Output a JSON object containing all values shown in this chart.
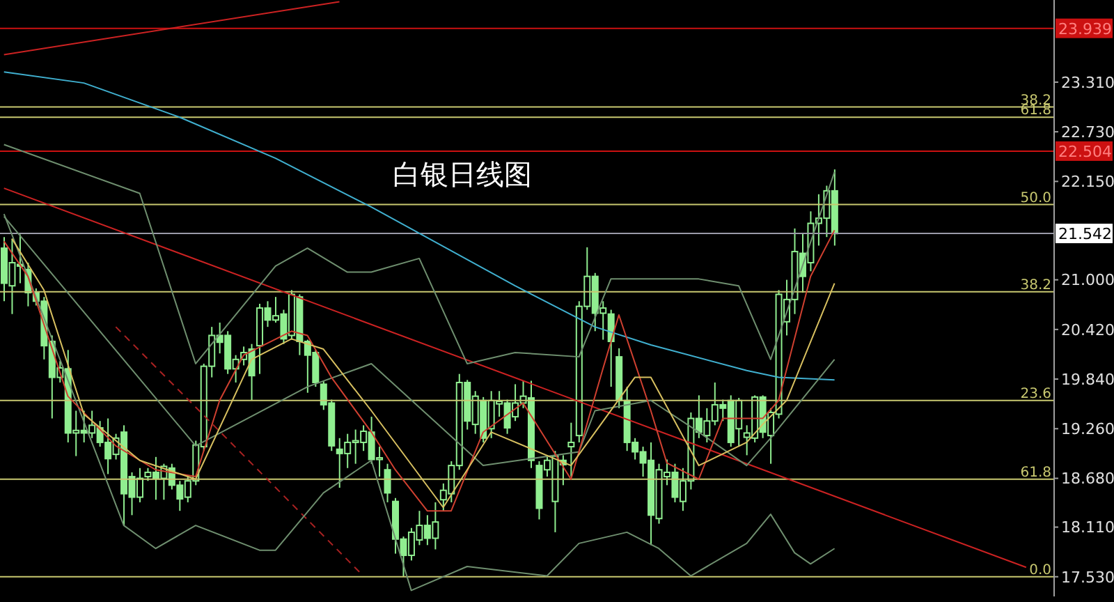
{
  "chart_data": {
    "type": "candlestick",
    "title": "白银日线图",
    "color": "#90ee90",
    "categories": [
      null,
      null,
      null,
      null,
      null,
      null,
      null,
      null,
      null,
      null,
      null,
      null,
      null,
      null,
      null,
      null,
      null,
      null,
      null,
      null,
      null,
      null,
      null,
      null,
      null,
      null,
      null,
      null,
      null,
      null,
      null,
      null,
      null,
      null,
      null,
      null,
      null,
      null,
      null,
      null,
      null,
      null,
      null,
      null,
      null,
      null,
      null,
      null,
      null,
      null,
      null,
      null,
      null,
      null,
      null,
      null,
      null,
      null,
      null,
      null,
      null,
      null,
      null,
      null,
      null,
      null,
      null,
      null,
      null,
      null,
      null,
      null,
      null,
      null,
      null,
      null,
      null,
      null,
      null,
      null,
      null,
      null,
      null,
      null,
      null,
      null,
      null,
      null,
      null,
      null,
      null,
      null,
      null,
      null,
      null,
      null,
      null,
      null,
      null,
      null,
      null,
      null,
      null,
      null,
      null,
      null,
      null,
      null,
      null,
      null,
      null,
      null,
      null,
      null,
      null,
      null,
      null,
      null,
      null,
      null,
      null,
      null,
      null,
      null,
      null,
      null,
      null,
      null,
      null,
      null,
      null,
      null
    ],
    "ohlc": [
      [
        21.37,
        21.5,
        20.75,
        20.96
      ],
      [
        20.93,
        21.48,
        20.6,
        21.2
      ],
      [
        21.18,
        21.53,
        20.96,
        21.16
      ],
      [
        21.12,
        21.2,
        20.69,
        20.85
      ],
      [
        20.85,
        20.9,
        20.7,
        20.75
      ],
      [
        20.75,
        20.8,
        20.07,
        20.23
      ],
      [
        20.28,
        20.35,
        19.38,
        19.86
      ],
      [
        19.86,
        20.05,
        19.8,
        19.97
      ],
      [
        19.96,
        20.18,
        19.1,
        19.21
      ],
      [
        19.21,
        19.47,
        18.94,
        19.24
      ],
      [
        19.24,
        19.47,
        19.1,
        19.21
      ],
      [
        19.21,
        19.47,
        19.15,
        19.3
      ],
      [
        19.27,
        19.35,
        19.05,
        19.1
      ],
      [
        19.1,
        19.38,
        18.73,
        18.91
      ],
      [
        18.96,
        19.2,
        18.9,
        19.15
      ],
      [
        19.22,
        19.3,
        18.13,
        18.5
      ],
      [
        18.7,
        18.75,
        18.25,
        18.46
      ],
      [
        18.46,
        18.8,
        18.4,
        18.68
      ],
      [
        18.7,
        18.8,
        18.65,
        18.75
      ],
      [
        18.75,
        18.93,
        18.43,
        18.68
      ],
      [
        18.68,
        18.85,
        18.43,
        18.82
      ],
      [
        18.8,
        18.85,
        18.55,
        18.6
      ],
      [
        18.6,
        18.65,
        18.3,
        18.44
      ],
      [
        18.46,
        18.7,
        18.4,
        18.65
      ],
      [
        18.65,
        19.12,
        18.6,
        19.07
      ],
      [
        19.05,
        20.02,
        19.0,
        19.99
      ],
      [
        19.99,
        20.45,
        19.86,
        20.35
      ],
      [
        20.35,
        20.5,
        20.14,
        20.27
      ],
      [
        20.35,
        20.4,
        19.9,
        19.96
      ],
      [
        19.96,
        20.12,
        19.8,
        20.07
      ],
      [
        20.07,
        20.22,
        20.0,
        20.15
      ],
      [
        20.19,
        20.25,
        19.59,
        19.88
      ],
      [
        20.23,
        20.72,
        19.9,
        20.67
      ],
      [
        20.67,
        20.75,
        20.45,
        20.53
      ],
      [
        20.53,
        20.8,
        20.5,
        20.58
      ],
      [
        20.6,
        20.65,
        20.25,
        20.31
      ],
      [
        20.35,
        20.88,
        20.3,
        20.83
      ],
      [
        20.8,
        20.83,
        20.12,
        20.28
      ],
      [
        20.28,
        20.3,
        19.68,
        20.12
      ],
      [
        20.15,
        20.18,
        19.75,
        19.8
      ],
      [
        19.78,
        19.82,
        19.48,
        19.54
      ],
      [
        19.56,
        19.6,
        19.0,
        19.06
      ],
      [
        19.02,
        19.15,
        18.57,
        18.97
      ],
      [
        18.97,
        19.2,
        18.8,
        19.1
      ],
      [
        19.1,
        19.25,
        18.85,
        19.12
      ],
      [
        19.1,
        19.3,
        19.0,
        19.23
      ],
      [
        19.22,
        19.4,
        18.85,
        18.9
      ],
      [
        18.9,
        19.05,
        18.7,
        18.92
      ],
      [
        18.78,
        18.85,
        18.4,
        18.51
      ],
      [
        18.41,
        18.45,
        17.8,
        17.97
      ],
      [
        17.97,
        18.0,
        17.53,
        17.78
      ],
      [
        17.78,
        18.1,
        17.72,
        18.05
      ],
      [
        17.96,
        18.3,
        17.9,
        18.13
      ],
      [
        18.13,
        18.25,
        17.9,
        17.98
      ],
      [
        17.98,
        18.4,
        17.85,
        18.17
      ],
      [
        18.43,
        18.62,
        18.3,
        18.54
      ],
      [
        18.5,
        18.88,
        18.4,
        18.83
      ],
      [
        18.83,
        19.9,
        18.78,
        19.8
      ],
      [
        19.8,
        19.83,
        19.25,
        19.35
      ],
      [
        19.31,
        19.7,
        19.2,
        19.64
      ],
      [
        19.59,
        19.63,
        19.1,
        19.15
      ],
      [
        19.26,
        19.7,
        19.15,
        19.59
      ],
      [
        19.55,
        19.7,
        19.4,
        19.58
      ],
      [
        19.56,
        19.6,
        19.2,
        19.27
      ],
      [
        19.4,
        19.78,
        19.35,
        19.56
      ],
      [
        19.56,
        19.82,
        19.5,
        19.64
      ],
      [
        19.62,
        19.82,
        18.8,
        18.89
      ],
      [
        18.83,
        18.88,
        18.2,
        18.33
      ],
      [
        18.78,
        18.95,
        18.7,
        18.89
      ],
      [
        18.41,
        19.0,
        18.05,
        18.94
      ],
      [
        18.89,
        18.95,
        18.6,
        18.84
      ],
      [
        19.05,
        19.33,
        18.7,
        19.1
      ],
      [
        19.18,
        20.75,
        19.1,
        20.69
      ],
      [
        20.69,
        21.38,
        20.65,
        21.04
      ],
      [
        21.04,
        21.08,
        20.4,
        20.61
      ],
      [
        20.61,
        20.75,
        20.3,
        20.67
      ],
      [
        20.6,
        20.65,
        19.75,
        20.28
      ],
      [
        20.1,
        20.2,
        19.5,
        19.59
      ],
      [
        19.59,
        19.75,
        19.0,
        19.1
      ],
      [
        19.1,
        19.15,
        18.9,
        18.99
      ],
      [
        18.99,
        19.05,
        18.7,
        18.86
      ],
      [
        18.89,
        19.1,
        17.9,
        18.25
      ],
      [
        18.21,
        18.85,
        18.15,
        18.78
      ],
      [
        18.7,
        18.9,
        18.6,
        18.75
      ],
      [
        18.75,
        18.85,
        18.4,
        18.46
      ],
      [
        18.41,
        18.8,
        18.3,
        18.65
      ],
      [
        18.65,
        19.45,
        18.55,
        19.38
      ],
      [
        19.38,
        19.65,
        19.15,
        19.22
      ],
      [
        19.18,
        19.5,
        19.1,
        19.35
      ],
      [
        19.35,
        19.8,
        19.3,
        19.54
      ],
      [
        19.54,
        19.6,
        19.35,
        19.5
      ],
      [
        19.59,
        19.65,
        19.05,
        19.1
      ],
      [
        19.26,
        19.62,
        19.05,
        19.59
      ],
      [
        19.16,
        19.3,
        18.95,
        19.21
      ],
      [
        19.15,
        19.65,
        19.1,
        19.63
      ],
      [
        19.63,
        19.65,
        19.15,
        19.22
      ],
      [
        19.18,
        19.5,
        18.85,
        19.45
      ],
      [
        19.43,
        20.88,
        19.38,
        20.83
      ],
      [
        20.51,
        21.0,
        20.35,
        20.77
      ],
      [
        20.77,
        21.6,
        20.6,
        21.33
      ],
      [
        21.31,
        21.55,
        20.85,
        21.04
      ],
      [
        21.2,
        21.8,
        21.1,
        21.66
      ],
      [
        21.66,
        22.0,
        21.4,
        21.72
      ],
      [
        21.72,
        22.1,
        21.5,
        22.04
      ],
      [
        22.04,
        22.29,
        21.4,
        21.54
      ],
      null,
      null,
      null,
      null,
      null,
      null,
      null,
      null,
      null,
      null,
      null,
      null,
      null,
      null,
      null,
      null,
      null,
      null,
      null,
      null,
      null,
      null,
      null,
      null,
      null,
      null,
      null
    ],
    "series": [
      {
        "type": "line",
        "color": "#40b0d0",
        "values": [
          23.43,
          null,
          null,
          null,
          null,
          null,
          null,
          null,
          null,
          null,
          23.3,
          null,
          null,
          null,
          null,
          null,
          null,
          null,
          null,
          null,
          null,
          null,
          22.9,
          null,
          null,
          null,
          null,
          null,
          null,
          null,
          null,
          null,
          null,
          null,
          22.42,
          null,
          null,
          null,
          null,
          null,
          null,
          null,
          null,
          null,
          null,
          null,
          21.85,
          null,
          null,
          null,
          null,
          null,
          null,
          null,
          null,
          null,
          null,
          null,
          null,
          null,
          null,
          null,
          null,
          null,
          20.93,
          null,
          null,
          null,
          null,
          null,
          null,
          null,
          null,
          null,
          20.45,
          null,
          null,
          null,
          null,
          null,
          null,
          20.24,
          null,
          null,
          null,
          null,
          null,
          null,
          null,
          null,
          null,
          null,
          null,
          19.94,
          null,
          null,
          null,
          19.86,
          null,
          null,
          null,
          null,
          null,
          null,
          19.83,
          null,
          null,
          null,
          null,
          null,
          null,
          null,
          null,
          null,
          null,
          null,
          null,
          null,
          null,
          null,
          null,
          null,
          null,
          null,
          null,
          null,
          null,
          null,
          null,
          null,
          null,
          null
        ]
      },
      {
        "type": "line",
        "color": "#cc2222",
        "values": [
          22.07,
          null,
          null,
          null,
          null,
          null,
          null,
          null,
          null,
          null,
          null,
          null,
          null,
          null,
          null,
          null,
          null,
          null,
          null,
          null,
          null,
          null,
          null,
          null,
          null,
          null,
          null,
          null,
          null,
          null,
          null,
          null,
          null,
          null,
          null,
          null,
          null,
          null,
          null,
          null,
          null,
          null,
          null,
          null,
          null,
          null,
          null,
          null,
          null,
          null,
          null,
          null,
          null,
          null,
          null,
          null,
          null,
          null,
          null,
          null,
          null,
          null,
          null,
          null,
          null,
          null,
          null,
          null,
          null,
          null,
          null,
          null,
          null,
          null,
          null,
          null,
          null,
          null,
          null,
          null,
          null,
          null,
          null,
          null,
          null,
          null,
          null,
          null,
          null,
          null,
          null,
          null,
          null,
          null,
          null,
          null,
          null,
          null,
          null,
          null,
          null,
          null,
          null,
          null,
          null,
          null,
          null,
          null,
          null,
          null,
          null,
          null,
          null,
          null,
          null,
          null,
          null,
          null,
          null,
          null,
          null,
          null,
          null,
          null,
          null,
          null,
          null,
          null,
          17.64,
          null,
          null,
          null
        ]
      },
      {
        "type": "line",
        "color": "#cc2222",
        "values": [
          23.63,
          null,
          null,
          null,
          null,
          null,
          null,
          null,
          null,
          null,
          null,
          null,
          null,
          null,
          null,
          null,
          null,
          null,
          null,
          null,
          null,
          null,
          null,
          null,
          null,
          null,
          null,
          null,
          null,
          null,
          null,
          null,
          null,
          null,
          null,
          null,
          null,
          null,
          null,
          null,
          null,
          null,
          24.25,
          null,
          null,
          null,
          null,
          null,
          null,
          null,
          null,
          null,
          null,
          null,
          null,
          null,
          null,
          null,
          null,
          null,
          null,
          null,
          null,
          null,
          null,
          null,
          null,
          null,
          null,
          null,
          null,
          null,
          null,
          null,
          null,
          null,
          null,
          null,
          null,
          null,
          null,
          null,
          null,
          null,
          null,
          null,
          null,
          null,
          null,
          null,
          null,
          null,
          null,
          null,
          null,
          null,
          null,
          null,
          null,
          null,
          null,
          null,
          null,
          null,
          null,
          null,
          null,
          null,
          null,
          null,
          null,
          null,
          null,
          null,
          null,
          null,
          null,
          null,
          null,
          null,
          null,
          null,
          null,
          null,
          null,
          null,
          null,
          null,
          null,
          null,
          null,
          null
        ]
      },
      {
        "type": "line",
        "color": "#aa2222",
        "line_style": "dashed",
        "values": [
          null,
          null,
          null,
          null,
          null,
          null,
          null,
          null,
          null,
          null,
          null,
          null,
          null,
          null,
          20.45,
          null,
          null,
          null,
          null,
          null,
          null,
          null,
          null,
          null,
          null,
          null,
          null,
          null,
          null,
          null,
          null,
          null,
          null,
          null,
          null,
          null,
          null,
          null,
          null,
          null,
          null,
          null,
          null,
          null,
          null,
          17.54,
          null,
          null,
          null,
          null,
          null,
          null,
          null,
          null,
          null,
          null,
          null,
          null,
          null,
          null,
          null,
          null,
          null,
          null,
          null,
          null,
          null,
          null,
          null,
          null,
          null,
          null,
          null,
          null,
          null,
          null,
          null,
          null,
          null,
          null,
          null,
          null,
          null,
          null,
          null,
          null,
          null,
          null,
          null,
          null,
          null,
          null,
          null,
          null,
          null,
          null,
          null,
          null,
          null,
          null,
          null,
          null,
          null,
          null,
          null,
          null,
          null,
          null,
          null,
          null,
          null,
          null,
          null,
          null,
          null,
          null,
          null,
          null,
          null,
          null,
          null,
          null,
          null,
          null,
          null,
          null,
          null,
          null,
          null,
          null,
          null,
          null
        ]
      },
      {
        "type": "line",
        "color": "#6f8f6f",
        "values": [
          22.58,
          null,
          null,
          null,
          null,
          null,
          null,
          null,
          null,
          null,
          null,
          null,
          null,
          null,
          null,
          null,
          null,
          22.01,
          null,
          null,
          null,
          null,
          null,
          null,
          20.02,
          null,
          null,
          null,
          null,
          null,
          null,
          null,
          null,
          null,
          21.16,
          null,
          null,
          null,
          21.37,
          null,
          null,
          null,
          null,
          21.09,
          null,
          null,
          21.09,
          null,
          null,
          null,
          null,
          null,
          21.25,
          null,
          null,
          null,
          null,
          null,
          20.02,
          null,
          null,
          null,
          null,
          null,
          20.15,
          null,
          null,
          null,
          null,
          null,
          null,
          null,
          20.1,
          null,
          null,
          null,
          21.01,
          null,
          null,
          null,
          null,
          null,
          null,
          null,
          null,
          null,
          null,
          21.01,
          null,
          null,
          null,
          null,
          20.93,
          null,
          null,
          null,
          20.07,
          null,
          null,
          null,
          null,
          null,
          null,
          null,
          22.26,
          null,
          null,
          null,
          null,
          null,
          null,
          null,
          null,
          null,
          null,
          null,
          null,
          null,
          null,
          null,
          null,
          null,
          null,
          null,
          null,
          null,
          null,
          null,
          null,
          null,
          null,
          null
        ]
      },
      {
        "type": "line",
        "color": "#6f8f6f",
        "values": [
          21.74,
          null,
          null,
          null,
          null,
          null,
          null,
          null,
          null,
          null,
          null,
          null,
          null,
          null,
          null,
          null,
          null,
          null,
          null,
          null,
          null,
          null,
          null,
          null,
          19.06,
          null,
          null,
          null,
          null,
          null,
          null,
          null,
          null,
          null,
          null,
          null,
          null,
          null,
          19.75,
          null,
          null,
          null,
          null,
          null,
          null,
          null,
          20.02,
          null,
          null,
          null,
          null,
          null,
          null,
          null,
          null,
          null,
          null,
          null,
          null,
          null,
          18.83,
          null,
          null,
          null,
          null,
          null,
          null,
          null,
          null,
          null,
          null,
          null,
          18.99,
          null,
          19.47,
          null,
          null,
          null,
          null,
          null,
          null,
          19.59,
          null,
          null,
          null,
          null,
          null,
          19.22,
          null,
          null,
          null,
          null,
          null,
          18.83,
          null,
          null,
          19.15,
          null,
          null,
          null,
          null,
          null,
          null,
          null,
          20.07,
          null,
          null,
          null,
          null,
          null,
          null,
          null,
          null,
          null,
          null,
          null,
          null,
          null,
          null,
          null,
          null,
          null,
          null,
          null,
          null,
          null,
          null,
          null,
          null,
          null,
          null,
          null
        ]
      },
      {
        "type": "line",
        "color": "#6f8f6f",
        "values": [
          21.77,
          null,
          null,
          null,
          null,
          null,
          null,
          null,
          null,
          null,
          null,
          null,
          null,
          null,
          null,
          18.13,
          null,
          null,
          null,
          17.86,
          null,
          null,
          null,
          null,
          18.13,
          null,
          null,
          null,
          null,
          null,
          null,
          null,
          17.84,
          null,
          17.84,
          null,
          null,
          null,
          null,
          null,
          18.51,
          null,
          null,
          null,
          null,
          null,
          18.89,
          null,
          null,
          null,
          null,
          17.37,
          null,
          null,
          null,
          null,
          null,
          null,
          17.65,
          null,
          null,
          null,
          null,
          null,
          null,
          null,
          null,
          null,
          17.54,
          null,
          null,
          null,
          17.92,
          null,
          null,
          null,
          null,
          null,
          18.05,
          null,
          null,
          null,
          17.86,
          null,
          null,
          null,
          17.54,
          null,
          null,
          null,
          null,
          null,
          null,
          17.92,
          null,
          null,
          18.26,
          null,
          null,
          17.81,
          null,
          17.68,
          null,
          null,
          17.86,
          null,
          null,
          null,
          null,
          null,
          null,
          null,
          null,
          null,
          null,
          null,
          null,
          null,
          null,
          null,
          null,
          null,
          null,
          null,
          null,
          null,
          null,
          null,
          null,
          null,
          null,
          null
        ]
      },
      {
        "type": "line",
        "color": "#d04030",
        "values": [
          21.45,
          null,
          null,
          21.04,
          null,
          null,
          null,
          null,
          19.64,
          null,
          null,
          null,
          null,
          null,
          19.06,
          null,
          null,
          null,
          null,
          18.78,
          null,
          null,
          null,
          null,
          18.7,
          null,
          null,
          19.59,
          null,
          null,
          20.12,
          null,
          null,
          null,
          null,
          null,
          20.4,
          null,
          20.35,
          null,
          null,
          19.86,
          null,
          null,
          null,
          null,
          19.22,
          null,
          null,
          18.78,
          null,
          null,
          null,
          18.3,
          null,
          null,
          18.3,
          null,
          null,
          null,
          19.22,
          null,
          null,
          null,
          null,
          19.56,
          null,
          null,
          null,
          null,
          null,
          18.67,
          null,
          null,
          null,
          19.96,
          null,
          20.59,
          null,
          null,
          null,
          19.47,
          null,
          18.86,
          null,
          null,
          null,
          18.67,
          null,
          null,
          19.38,
          null,
          null,
          null,
          null,
          19.38,
          null,
          19.59,
          null,
          null,
          null,
          21.04,
          null,
          null,
          21.58,
          null,
          null,
          null,
          null,
          null,
          null,
          null,
          null,
          null,
          null,
          null,
          null,
          null,
          null,
          null,
          null,
          null,
          null,
          null,
          null,
          null,
          null,
          null,
          null,
          null,
          null,
          null
        ]
      },
      {
        "type": "line",
        "color": "#d8c060",
        "values": [
          null,
          21.48,
          null,
          null,
          null,
          20.88,
          null,
          null,
          null,
          null,
          19.43,
          null,
          null,
          null,
          null,
          null,
          null,
          18.89,
          null,
          null,
          null,
          null,
          null,
          null,
          18.67,
          null,
          null,
          null,
          null,
          null,
          null,
          20.07,
          null,
          null,
          null,
          null,
          20.31,
          null,
          null,
          null,
          20.19,
          null,
          null,
          null,
          null,
          null,
          19.47,
          null,
          null,
          null,
          null,
          null,
          null,
          null,
          null,
          18.34,
          null,
          null,
          null,
          null,
          null,
          19.22,
          null,
          null,
          null,
          null,
          null,
          null,
          null,
          null,
          null,
          18.83,
          null,
          null,
          null,
          null,
          null,
          null,
          null,
          19.86,
          null,
          19.86,
          null,
          null,
          null,
          null,
          null,
          18.83,
          null,
          null,
          null,
          null,
          null,
          19.1,
          null,
          19.31,
          null,
          null,
          19.59,
          null,
          null,
          null,
          null,
          null,
          20.96,
          null,
          null,
          null,
          null,
          null,
          null,
          null,
          null,
          null,
          null,
          null,
          null,
          null,
          null,
          null,
          null,
          null,
          null,
          null,
          null,
          null,
          null,
          null,
          null,
          null,
          null,
          null
        ]
      }
    ],
    "marker": "none",
    "line_style": "solid",
    "ylim": [
      17.3,
      24.27
    ],
    "tick_labels": "y",
    "yticks": [
      {
        "value": 17.53,
        "label": "17.530"
      },
      {
        "value": 18.11,
        "label": "18.110"
      },
      {
        "value": 18.68,
        "label": "18.680"
      },
      {
        "value": 19.26,
        "label": "19.260"
      },
      {
        "value": 19.84,
        "label": "19.840"
      },
      {
        "value": 20.42,
        "label": "20.420"
      },
      {
        "value": 21.0,
        "label": "21.000"
      },
      {
        "value": 22.15,
        "label": "22.150"
      },
      {
        "value": 22.73,
        "label": "22.730"
      },
      {
        "value": 23.31,
        "label": "23.310"
      }
    ],
    "ref_lines": [
      {
        "axis": "y",
        "value": 23.939,
        "label": "23.939",
        "color": "#cc1111"
      },
      {
        "axis": "y",
        "value": 23.02,
        "color": "#c8c870"
      },
      {
        "axis": "y",
        "value": 22.9,
        "color": "#c8c870"
      },
      {
        "axis": "y",
        "value": 22.504,
        "label": "22.504",
        "color": "#cc1111"
      },
      {
        "axis": "y",
        "value": 21.88,
        "color": "#c8c870"
      },
      {
        "axis": "y",
        "value": 21.542,
        "label": "21.542",
        "color": "#9a9aa8"
      },
      {
        "axis": "y",
        "value": 20.86,
        "color": "#c8c870"
      },
      {
        "axis": "y",
        "value": 19.59,
        "color": "#c8c870"
      },
      {
        "axis": "y",
        "value": 18.67,
        "color": "#c8c870"
      },
      {
        "axis": "y",
        "value": 17.53,
        "color": "#c8c870"
      }
    ],
    "annotations": [
      {
        "text": "38.2",
        "y": 23.02
      },
      {
        "text": "61.8",
        "y": 22.9
      },
      {
        "text": "50.0",
        "y": 21.88
      },
      {
        "text": "38.2",
        "y": 20.86
      },
      {
        "text": "23.6",
        "y": 19.59
      },
      {
        "text": "61.8",
        "y": 18.67
      },
      {
        "text": "0.0",
        "y": 17.53
      }
    ]
  }
}
